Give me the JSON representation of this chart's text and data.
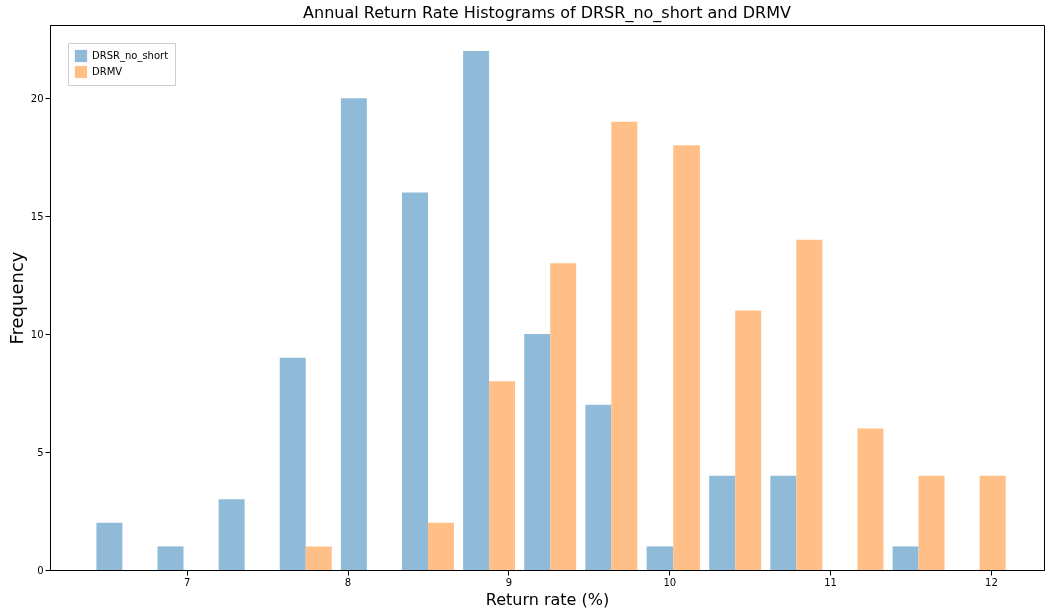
{
  "chart_data": {
    "type": "histogram",
    "title": "Annual Return Rate Histograms of DRSR_no_short and DRMV",
    "xlabel": "Return rate (%)",
    "ylabel": "Frequency",
    "bins": [
      6.41,
      6.79,
      7.17,
      7.55,
      7.93,
      8.31,
      8.69,
      9.07,
      9.45,
      9.83,
      10.22,
      10.6,
      10.98,
      11.36,
      11.74,
      12.12
    ],
    "series": [
      {
        "name": "DRSR_no_short",
        "color": "#8fbbd9",
        "values": [
          2,
          1,
          3,
          9,
          20,
          16,
          22,
          10,
          7,
          1,
          4,
          4,
          0,
          1,
          0
        ]
      },
      {
        "name": "DRMV",
        "color": "#ffbf86",
        "values": [
          0,
          0,
          0,
          1,
          0,
          2,
          8,
          13,
          19,
          18,
          11,
          14,
          6,
          4,
          4
        ]
      }
    ],
    "xlim": [
      6.15,
      12.33
    ],
    "ylim": [
      0,
      23.1
    ],
    "xticks": [
      7,
      8,
      9,
      10,
      11,
      12
    ],
    "yticks": [
      0,
      5,
      10,
      15,
      20
    ],
    "grid": false,
    "legend": "top left"
  }
}
